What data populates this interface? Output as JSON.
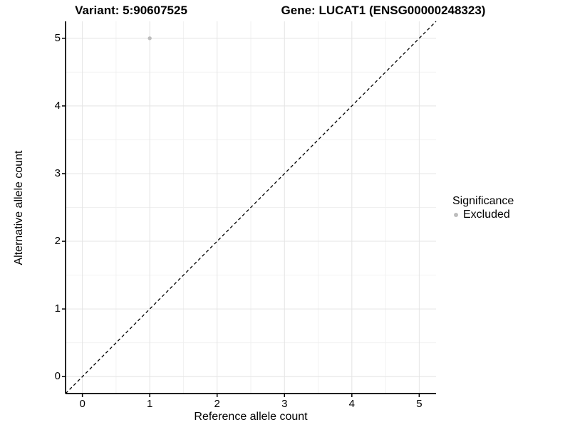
{
  "chart_data": {
    "type": "scatter",
    "title_left": "Variant: 5:90607525",
    "title_right": "Gene: LUCAT1 (ENSG00000248323)",
    "xlabel": "Reference allele count",
    "ylabel": "Alternative allele count",
    "xlim": [
      -0.25,
      5.25
    ],
    "ylim": [
      -0.25,
      5.25
    ],
    "xticks": [
      0,
      1,
      2,
      3,
      4,
      5
    ],
    "yticks": [
      0,
      1,
      2,
      3,
      4,
      5
    ],
    "xminor": [
      0.5,
      1.5,
      2.5,
      3.5,
      4.5
    ],
    "yminor": [
      0.5,
      1.5,
      2.5,
      3.5,
      4.5
    ],
    "grid": true,
    "points": [
      {
        "x": 1,
        "y": 5,
        "series": "Excluded"
      }
    ],
    "reference_line": {
      "type": "identity",
      "x1": -0.25,
      "y1": -0.25,
      "x2": 5.25,
      "y2": 5.25,
      "style": "dashed"
    },
    "legend": {
      "title": "Significance",
      "position": "right",
      "entries": [
        {
          "label": "Excluded",
          "color": "#bdbdbd"
        }
      ]
    },
    "colors": {
      "point": "#bdbdbd",
      "grid_major": "#e4e4e4",
      "grid_minor": "#f0f0f0",
      "axis": "#000000",
      "reference_line": "#000000",
      "text": "#000000"
    }
  }
}
